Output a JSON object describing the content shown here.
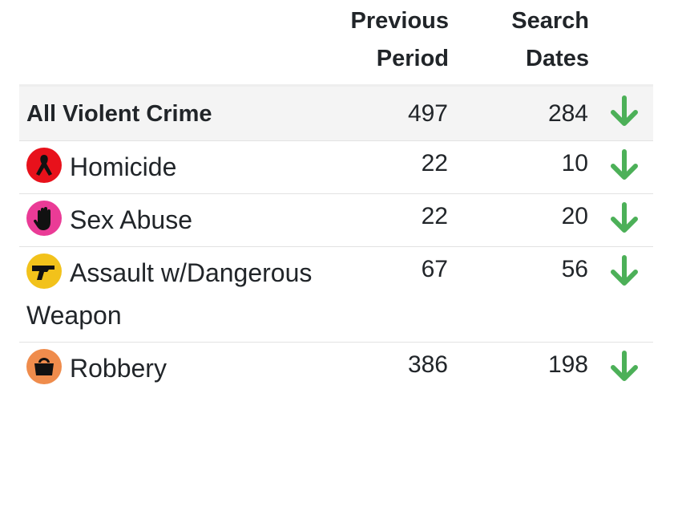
{
  "table": {
    "columns": [
      "Previous Period",
      "Search Dates"
    ],
    "rows": [
      {
        "label": "All Violent Crime",
        "previous": 497,
        "search": 284
      },
      {
        "label": "Homicide",
        "previous": 22,
        "search": 10
      },
      {
        "label": "Sex Abuse",
        "previous": 22,
        "search": 20
      },
      {
        "label": "Assault w/Dangerous Weapon",
        "previous": 67,
        "search": 56
      },
      {
        "label": "Robbery",
        "previous": 386,
        "search": 198
      }
    ]
  }
}
